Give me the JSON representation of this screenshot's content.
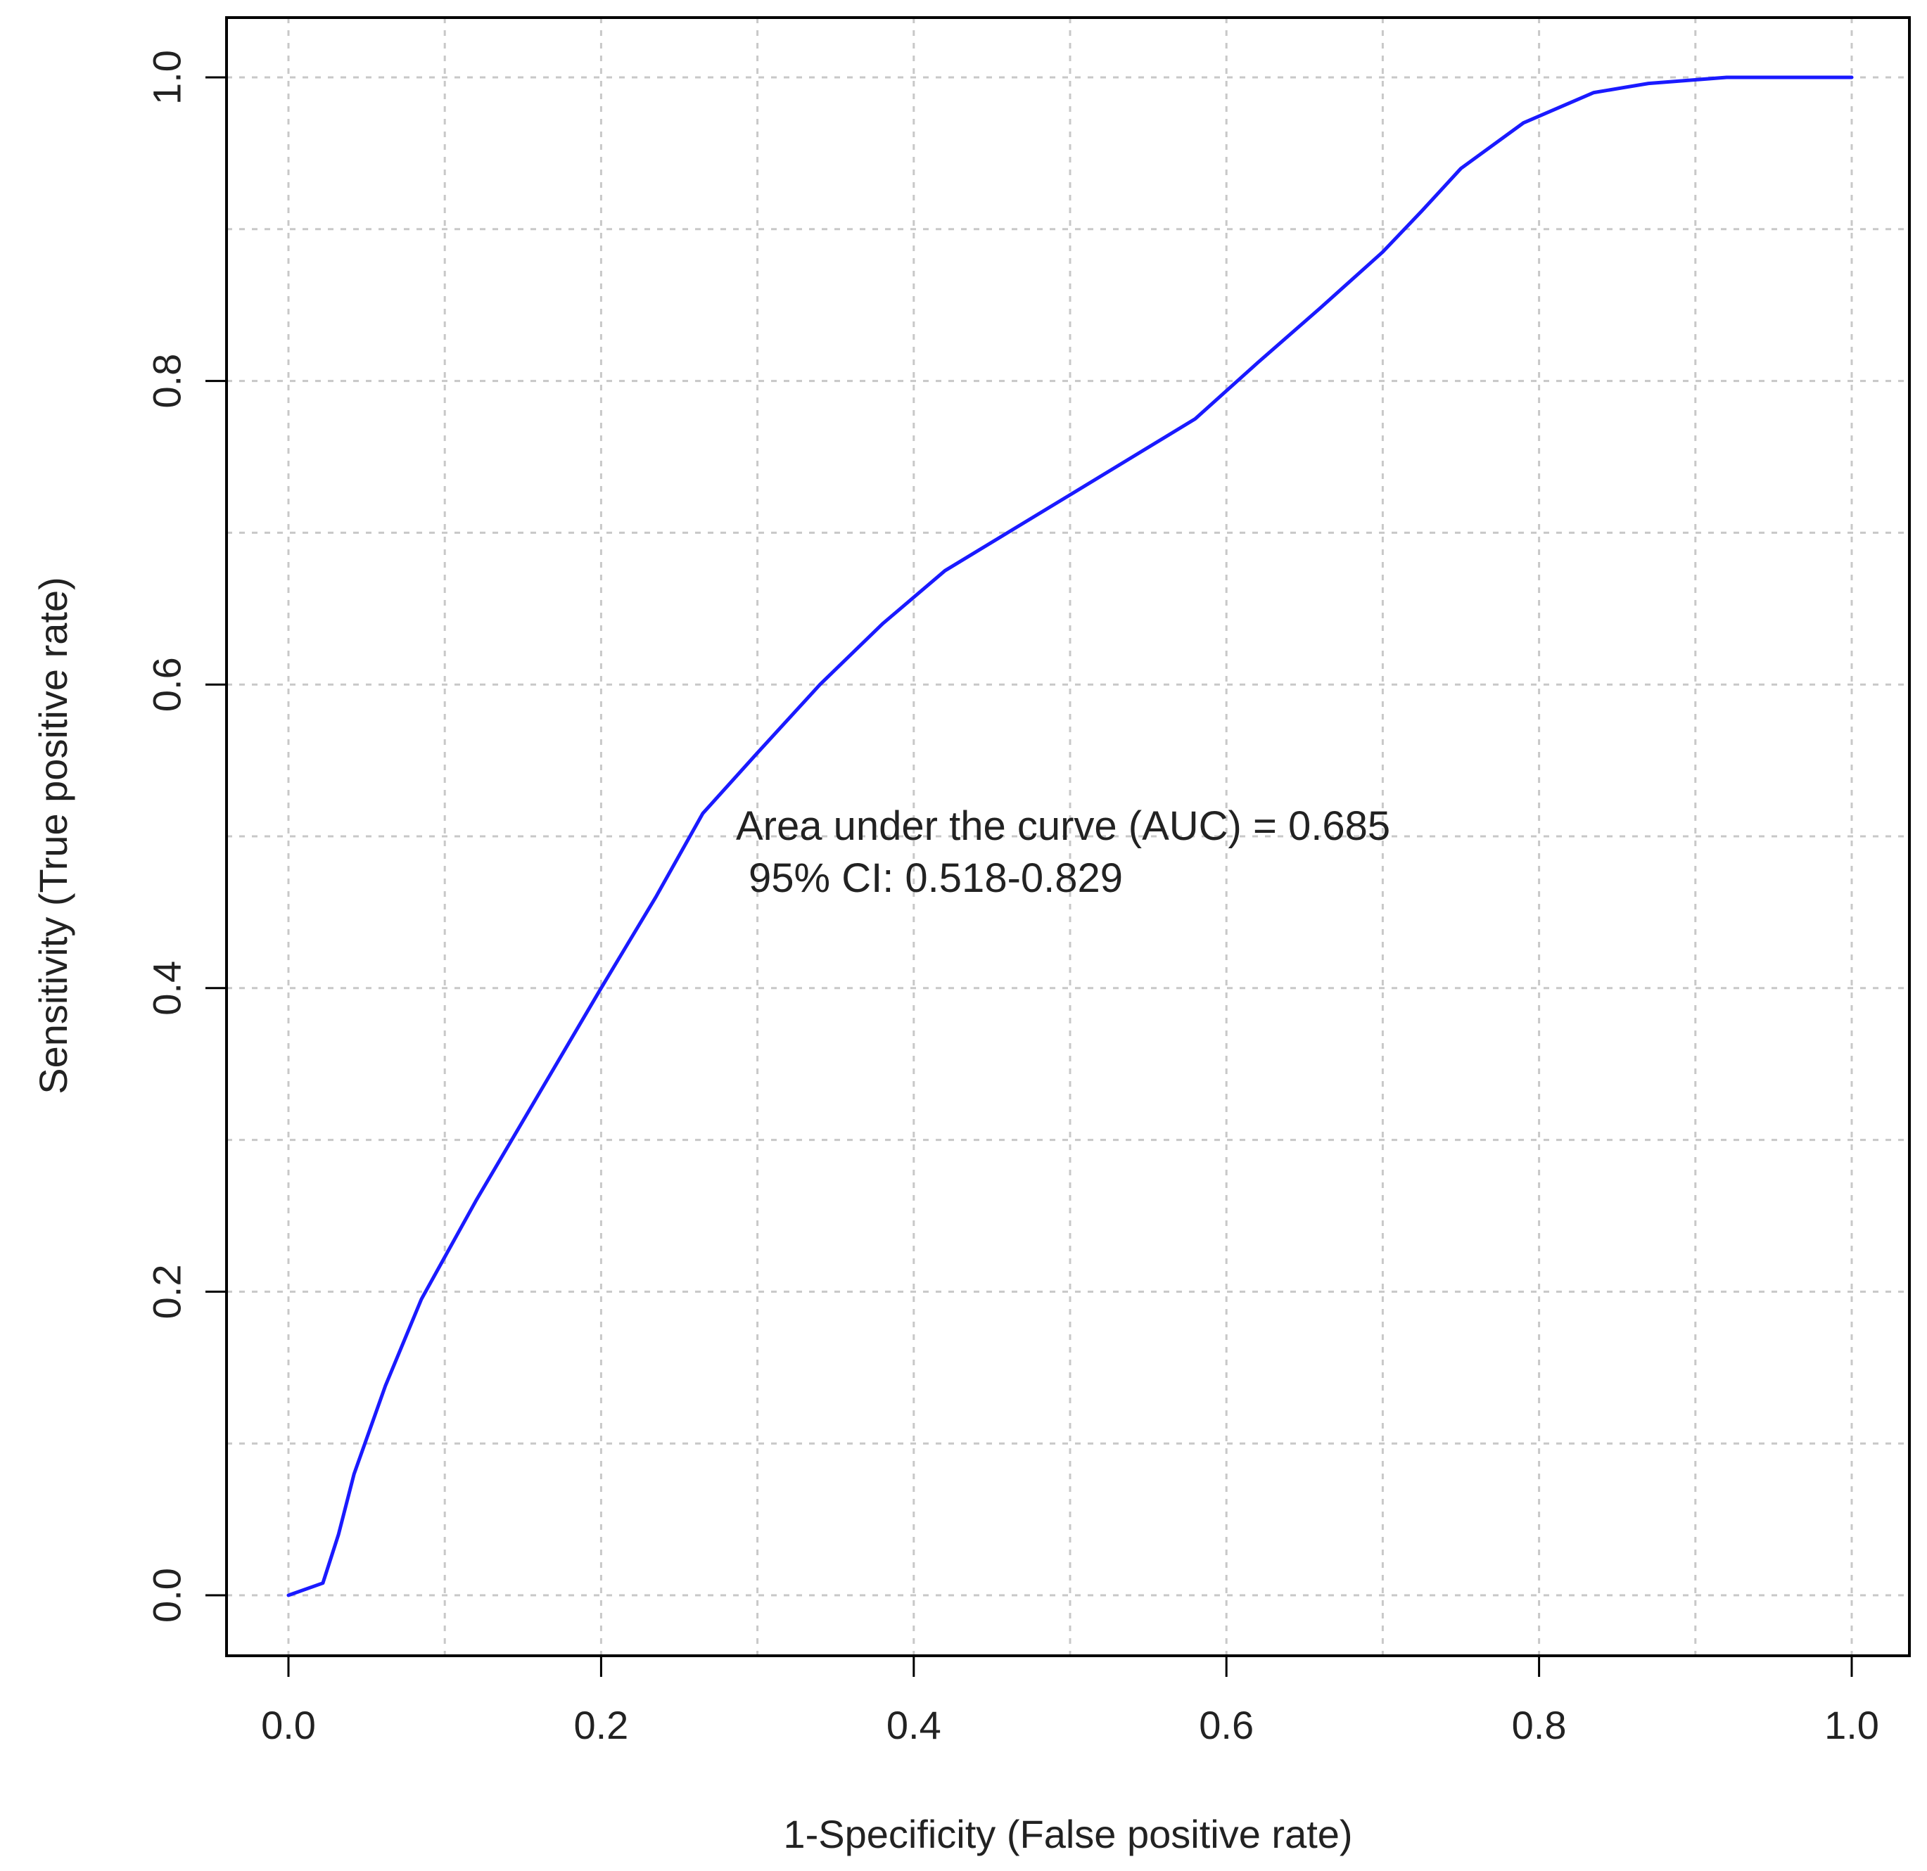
{
  "chart_data": {
    "type": "line",
    "title": "",
    "xlabel": "1-Specificity (False positive rate)",
    "ylabel": "Sensitivity (True positive rate)",
    "xlim": [
      0.0,
      1.0
    ],
    "ylim": [
      0.0,
      1.0
    ],
    "x_ticks": [
      "0.0",
      "0.2",
      "0.4",
      "0.6",
      "0.8",
      "1.0"
    ],
    "y_ticks": [
      "0.0",
      "0.2",
      "0.4",
      "0.6",
      "0.8",
      "1.0"
    ],
    "grid": true,
    "grid_x": [
      0.0,
      0.1,
      0.2,
      0.3,
      0.4,
      0.5,
      0.6,
      0.7,
      0.8,
      0.9,
      1.0
    ],
    "grid_y": [
      0.0,
      0.1,
      0.2,
      0.3,
      0.4,
      0.5,
      0.6,
      0.7,
      0.8,
      0.9,
      1.0
    ],
    "series": [
      {
        "color": "#1a1aff",
        "x": [
          0.0,
          0.022,
          0.032,
          0.042,
          0.062,
          0.085,
          0.12,
          0.16,
          0.2,
          0.235,
          0.265,
          0.3,
          0.34,
          0.38,
          0.42,
          0.46,
          0.5,
          0.54,
          0.58,
          0.62,
          0.66,
          0.7,
          0.725,
          0.75,
          0.79,
          0.835,
          0.87,
          0.92,
          1.0
        ],
        "y": [
          0.0,
          0.008,
          0.04,
          0.08,
          0.138,
          0.195,
          0.26,
          0.33,
          0.4,
          0.46,
          0.515,
          0.555,
          0.6,
          0.64,
          0.675,
          0.7,
          0.725,
          0.75,
          0.775,
          0.812,
          0.848,
          0.885,
          0.912,
          0.94,
          0.97,
          0.99,
          0.996,
          1.0,
          1.0
        ]
      }
    ],
    "annotations": [
      "Area under the curve (AUC) = 0.685",
      "95% CI: 0.518-0.829"
    ]
  }
}
